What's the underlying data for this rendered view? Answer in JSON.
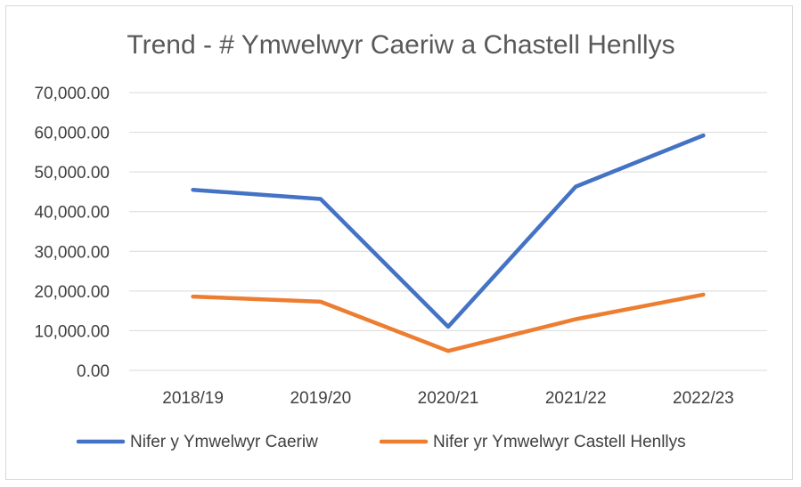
{
  "chart_data": {
    "type": "line",
    "title": "Trend - # Ymwelwyr Caeriw a Chastell Henllys",
    "xlabel": "",
    "ylabel": "",
    "categories": [
      "2018/19",
      "2019/20",
      "2020/21",
      "2021/22",
      "2022/23"
    ],
    "ylim": [
      0,
      70000
    ],
    "yticks": [
      "0.00",
      "10,000.00",
      "20,000.00",
      "30,000.00",
      "40,000.00",
      "50,000.00",
      "60,000.00",
      "70,000.00"
    ],
    "grid": true,
    "legend_position": "bottom",
    "series": [
      {
        "name": "Nifer y Ymwelwyr Caeriw",
        "color": "#4472c4",
        "values": [
          45500,
          43200,
          11000,
          46300,
          59200
        ]
      },
      {
        "name": "Nifer yr Ymwelwyr Castell Henllys",
        "color": "#ed7d31",
        "values": [
          18600,
          17300,
          4900,
          12900,
          19100
        ]
      }
    ]
  }
}
